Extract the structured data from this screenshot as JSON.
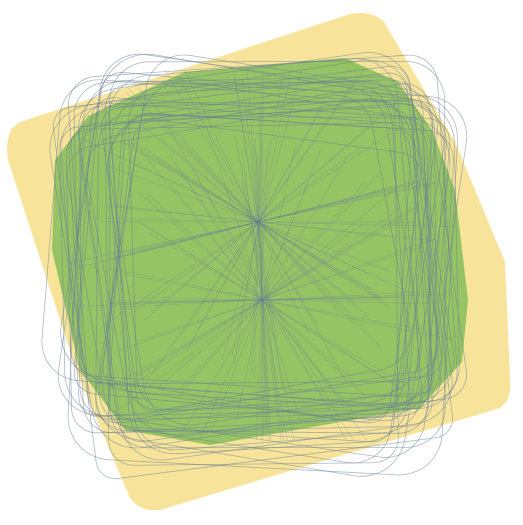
{
  "figure": {
    "layers": [
      {
        "name": "outer-hull",
        "fill": "#f7e49a"
      },
      {
        "name": "inner-hull",
        "fill": "#8dc060"
      },
      {
        "name": "trajectory-lines",
        "stroke": "#6a7f96"
      }
    ]
  }
}
